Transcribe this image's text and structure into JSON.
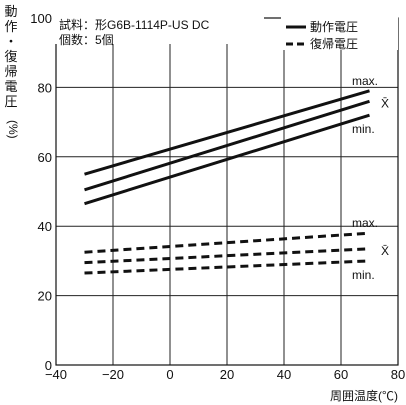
{
  "chart_data": {
    "type": "line",
    "title": "",
    "xlabel": "周囲温度(℃)",
    "ylabel_chars": [
      "動",
      "作",
      "・",
      "復",
      "帰",
      "電",
      "圧"
    ],
    "ylabel_unit": "(%)",
    "xlim": [
      -40,
      80
    ],
    "ylim": [
      0,
      100
    ],
    "x_ticks": [
      "−40",
      "−20",
      "0",
      "20",
      "40",
      "60",
      "80"
    ],
    "y_ticks": [
      "0",
      "20",
      "40",
      "60",
      "80",
      "100"
    ],
    "grid": true,
    "info": [
      "試料：形G6B-1114P-US  DC",
      "個数：5個"
    ],
    "legend_position": "top-right",
    "legend": [
      {
        "label": "動作電圧",
        "style": "solid"
      },
      {
        "label": "復帰電圧",
        "style": "dashed"
      }
    ],
    "series": [
      {
        "group": "動作電圧",
        "label": "max.",
        "style": "solid",
        "x": [
          -30,
          70
        ],
        "y": [
          55,
          79
        ]
      },
      {
        "group": "動作電圧",
        "label": "X̄",
        "style": "solid",
        "x": [
          -30,
          70
        ],
        "y": [
          50.5,
          76
        ]
      },
      {
        "group": "動作電圧",
        "label": "min.",
        "style": "solid",
        "x": [
          -30,
          70
        ],
        "y": [
          46.5,
          72
        ]
      },
      {
        "group": "復帰電圧",
        "label": "max.",
        "style": "dashed",
        "x": [
          -30,
          70
        ],
        "y": [
          32.5,
          38
        ]
      },
      {
        "group": "復帰電圧",
        "label": "X̄",
        "style": "dashed",
        "x": [
          -30,
          70
        ],
        "y": [
          29.5,
          33.5
        ]
      },
      {
        "group": "復帰電圧",
        "label": "min.",
        "style": "dashed",
        "x": [
          -30,
          70
        ],
        "y": [
          26.5,
          30
        ]
      }
    ]
  }
}
